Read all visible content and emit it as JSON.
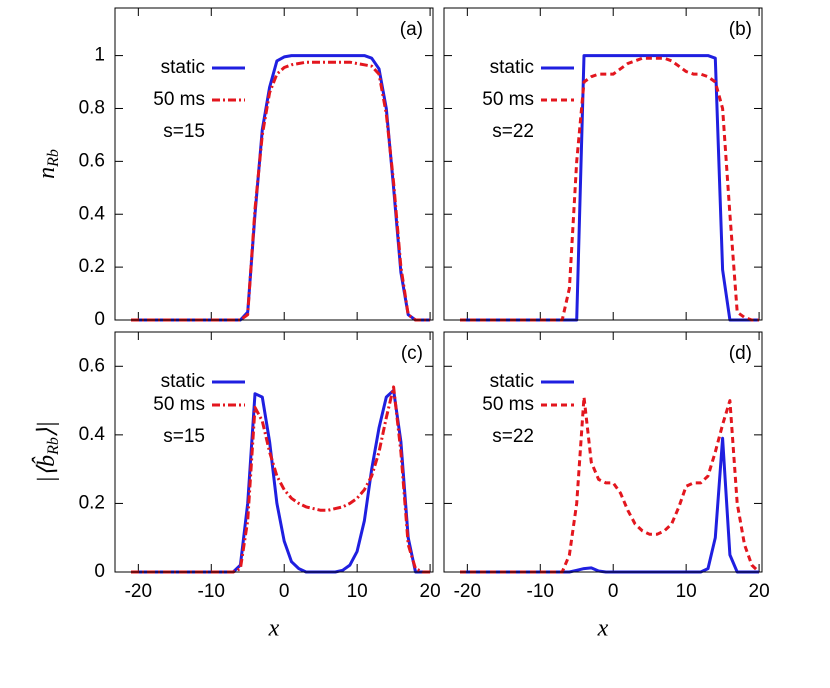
{
  "chart_data": [
    {
      "type": "line",
      "panel": "(a)",
      "annotation": "s=15",
      "ylabel": {
        "text": "n",
        "sub": "Rb"
      },
      "x": [
        -21,
        -20,
        -19,
        -18,
        -17,
        -16,
        -15,
        -14,
        -13,
        -12,
        -11,
        -10,
        -9,
        -8,
        -7,
        -6,
        -5,
        -4,
        -3,
        -2,
        -1,
        0,
        1,
        2,
        3,
        4,
        5,
        6,
        7,
        8,
        9,
        10,
        11,
        12,
        13,
        14,
        15,
        16,
        17,
        18,
        19,
        20
      ],
      "xlim": [
        -23.2,
        20.4
      ],
      "xticks": [
        -20,
        -10,
        0,
        10,
        20
      ],
      "ylim": [
        0,
        1.18
      ],
      "yticks": [
        0,
        0.2,
        0.4,
        0.6,
        0.8,
        1
      ],
      "series": [
        {
          "name": "static",
          "color": "#1f1fe0",
          "dash": "solid",
          "values": [
            0,
            0,
            0,
            0,
            0,
            0,
            0,
            0,
            0,
            0,
            0,
            0,
            0,
            0,
            0,
            0,
            0.03,
            0.4,
            0.72,
            0.88,
            0.98,
            0.995,
            1,
            1,
            1,
            1,
            1,
            1,
            1,
            1,
            1,
            1,
            1,
            0.99,
            0.95,
            0.8,
            0.5,
            0.18,
            0.02,
            0,
            0,
            0
          ]
        },
        {
          "name": "50 ms",
          "color": "#e3161e",
          "dash": "dashdot",
          "values": [
            0,
            0,
            0,
            0,
            0,
            0,
            0,
            0,
            0,
            0,
            0,
            0,
            0,
            0,
            0,
            0,
            0.02,
            0.42,
            0.7,
            0.86,
            0.93,
            0.955,
            0.965,
            0.97,
            0.975,
            0.975,
            0.975,
            0.975,
            0.975,
            0.975,
            0.975,
            0.97,
            0.965,
            0.96,
            0.93,
            0.78,
            0.52,
            0.2,
            0.02,
            0,
            0,
            0
          ]
        }
      ]
    },
    {
      "type": "line",
      "panel": "(b)",
      "annotation": "s=22",
      "x": [
        -21,
        -20,
        -19,
        -18,
        -17,
        -16,
        -15,
        -14,
        -13,
        -12,
        -11,
        -10,
        -9,
        -8,
        -7,
        -6,
        -5,
        -4,
        -3,
        -2,
        -1,
        0,
        1,
        2,
        3,
        4,
        5,
        6,
        7,
        8,
        9,
        10,
        11,
        12,
        13,
        14,
        15,
        16,
        17,
        18,
        19,
        20
      ],
      "xlim": [
        -23.2,
        20.4
      ],
      "xticks": [
        -20,
        -10,
        0,
        10,
        20
      ],
      "ylim": [
        0,
        1.18
      ],
      "yticks": [
        0,
        0.2,
        0.4,
        0.6,
        0.8,
        1
      ],
      "series": [
        {
          "name": "static",
          "color": "#1f1fe0",
          "dash": "solid",
          "values": [
            0,
            0,
            0,
            0,
            0,
            0,
            0,
            0,
            0,
            0,
            0,
            0,
            0,
            0,
            0,
            0,
            0,
            1,
            1,
            1,
            1,
            1,
            1,
            1,
            1,
            1,
            1,
            1,
            1,
            1,
            1,
            1,
            1,
            1,
            1,
            0.99,
            0.19,
            0,
            0,
            0,
            0,
            0
          ]
        },
        {
          "name": "50 ms",
          "color": "#e3161e",
          "dash": "dashed",
          "values": [
            0,
            0,
            0,
            0,
            0,
            0,
            0,
            0,
            0,
            0,
            0,
            0,
            0,
            0,
            0,
            0.12,
            0.6,
            0.9,
            0.92,
            0.93,
            0.93,
            0.93,
            0.95,
            0.97,
            0.98,
            0.99,
            0.99,
            0.99,
            0.99,
            0.98,
            0.96,
            0.94,
            0.93,
            0.93,
            0.92,
            0.9,
            0.8,
            0.4,
            0.03,
            0.01,
            0,
            0
          ]
        }
      ]
    },
    {
      "type": "line",
      "panel": "(c)",
      "annotation": "s=15",
      "xlabel": "x",
      "ylabel": {
        "text": "|⟨b̂",
        "sub": "Rb",
        "after": "⟩|"
      },
      "x": [
        -21,
        -20,
        -19,
        -18,
        -17,
        -16,
        -15,
        -14,
        -13,
        -12,
        -11,
        -10,
        -9,
        -8,
        -7,
        -6,
        -5,
        -4,
        -3,
        -2,
        -1,
        0,
        1,
        2,
        3,
        4,
        5,
        6,
        7,
        8,
        9,
        10,
        11,
        12,
        13,
        14,
        15,
        16,
        17,
        18,
        19,
        20
      ],
      "xlim": [
        -23.2,
        20.4
      ],
      "xticks": [
        -20,
        -10,
        0,
        10,
        20
      ],
      "ylim": [
        0,
        0.7
      ],
      "yticks": [
        0,
        0.2,
        0.4,
        0.6
      ],
      "series": [
        {
          "name": "static",
          "color": "#1f1fe0",
          "dash": "solid",
          "values": [
            0,
            0,
            0,
            0,
            0,
            0,
            0,
            0,
            0,
            0,
            0,
            0,
            0,
            0,
            0,
            0.02,
            0.2,
            0.52,
            0.51,
            0.38,
            0.2,
            0.09,
            0.03,
            0.01,
            0,
            0,
            0,
            0,
            0,
            0.005,
            0.02,
            0.06,
            0.15,
            0.3,
            0.42,
            0.51,
            0.53,
            0.38,
            0.1,
            0,
            0,
            0
          ]
        },
        {
          "name": "50 ms",
          "color": "#e3161e",
          "dash": "dashdot",
          "values": [
            0,
            0,
            0,
            0,
            0,
            0,
            0,
            0,
            0,
            0,
            0,
            0,
            0,
            0,
            0,
            0.01,
            0.15,
            0.48,
            0.44,
            0.35,
            0.28,
            0.24,
            0.215,
            0.2,
            0.19,
            0.185,
            0.18,
            0.18,
            0.185,
            0.19,
            0.2,
            0.215,
            0.24,
            0.28,
            0.35,
            0.45,
            0.54,
            0.35,
            0.08,
            0.01,
            0,
            0
          ]
        }
      ]
    },
    {
      "type": "line",
      "panel": "(d)",
      "annotation": "s=22",
      "xlabel": "x",
      "x": [
        -21,
        -20,
        -19,
        -18,
        -17,
        -16,
        -15,
        -14,
        -13,
        -12,
        -11,
        -10,
        -9,
        -8,
        -7,
        -6,
        -5,
        -4,
        -3,
        -2,
        -1,
        0,
        1,
        2,
        3,
        4,
        5,
        6,
        7,
        8,
        9,
        10,
        11,
        12,
        13,
        14,
        15,
        16,
        17,
        18,
        19,
        20
      ],
      "xlim": [
        -23.2,
        20.4
      ],
      "xticks": [
        -20,
        -10,
        0,
        10,
        20
      ],
      "ylim": [
        0,
        0.7
      ],
      "yticks": [
        0,
        0.2,
        0.4,
        0.6
      ],
      "series": [
        {
          "name": "static",
          "color": "#1f1fe0",
          "dash": "solid",
          "values": [
            0,
            0,
            0,
            0,
            0,
            0,
            0,
            0,
            0,
            0,
            0,
            0,
            0,
            0,
            0,
            0,
            0.005,
            0.01,
            0.012,
            0.003,
            0,
            0,
            0,
            0,
            0,
            0,
            0,
            0,
            0,
            0,
            0,
            0,
            0,
            0,
            0.01,
            0.1,
            0.39,
            0.05,
            0,
            0,
            0,
            0
          ]
        },
        {
          "name": "50 ms",
          "color": "#e3161e",
          "dash": "dashed",
          "values": [
            0,
            0,
            0,
            0,
            0,
            0,
            0,
            0,
            0,
            0,
            0,
            0,
            0,
            0,
            0,
            0.05,
            0.2,
            0.51,
            0.32,
            0.27,
            0.26,
            0.26,
            0.23,
            0.18,
            0.14,
            0.12,
            0.11,
            0.11,
            0.12,
            0.14,
            0.19,
            0.25,
            0.26,
            0.26,
            0.28,
            0.35,
            0.43,
            0.5,
            0.2,
            0.08,
            0.02,
            0
          ]
        }
      ]
    }
  ]
}
